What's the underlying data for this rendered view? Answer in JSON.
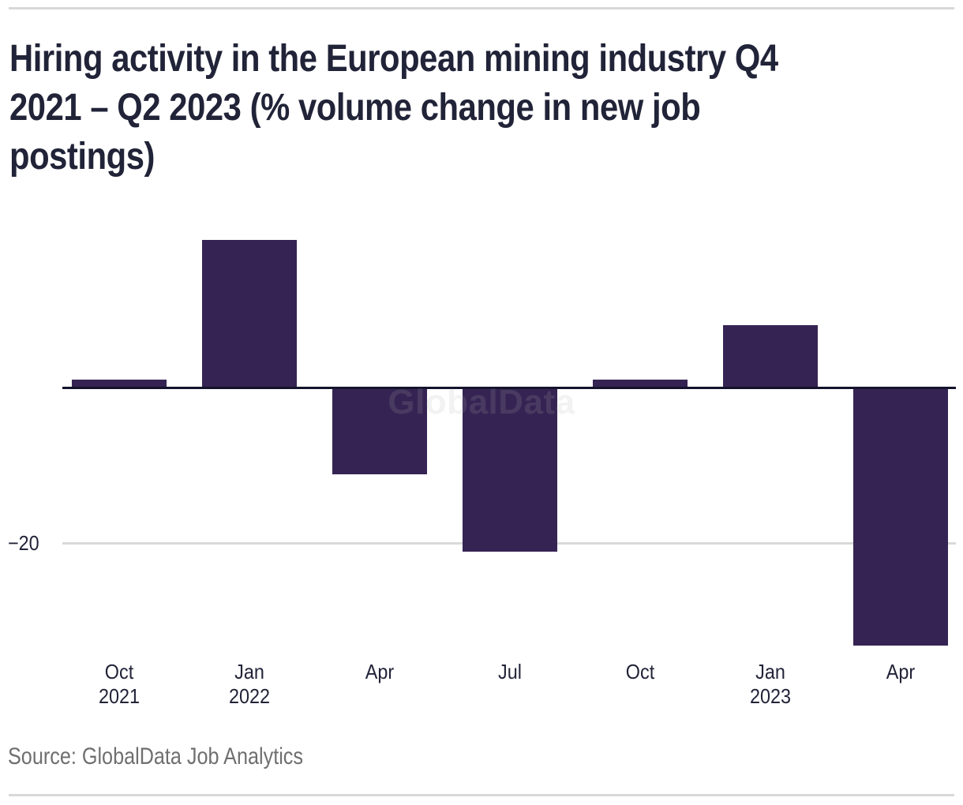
{
  "header": {
    "title": "Hiring activity in the European mining industry Q4 2021 – Q2 2023 (% volume change in new job postings)",
    "title_lines": [
      "Hiring activity in the European mining industry Q4",
      "2021 – Q2 2023 (% volume change in new job",
      "postings)"
    ]
  },
  "watermark": {
    "text": "GlobalData"
  },
  "footer": {
    "source": "Source: GlobalData Job Analytics"
  },
  "chart_data": {
    "type": "bar",
    "title": "Hiring activity in the European mining industry Q4 2021 – Q2 2023 (% volume change in new job postings)",
    "categories": [
      "Oct 2021",
      "Jan 2022",
      "Apr 2022",
      "Jul 2022",
      "Oct 2022",
      "Jan 2023",
      "Apr 2023"
    ],
    "tick_labels": [
      [
        "Oct",
        "2021"
      ],
      [
        "Jan",
        "2022"
      ],
      [
        "Apr"
      ],
      [
        "Jul"
      ],
      [
        "Oct"
      ],
      [
        "Jan",
        "2023"
      ],
      [
        "Apr"
      ]
    ],
    "values": [
      1,
      19,
      -11,
      -21,
      1,
      8,
      -33
    ],
    "unit": "% volume change in new job postings",
    "xlabel": "",
    "ylabel": "",
    "ylim": [
      -35,
      20
    ],
    "ytick": {
      "value": -20,
      "label": "−20"
    },
    "grid": "single horizontal gridline at -20 plus zero axis line",
    "legend": null,
    "bar_color": "#352453",
    "axis_color": "#13132b",
    "gridline_color": "#d9d9d9",
    "text_color": "#212338",
    "source_color": "#6f6f6f"
  }
}
